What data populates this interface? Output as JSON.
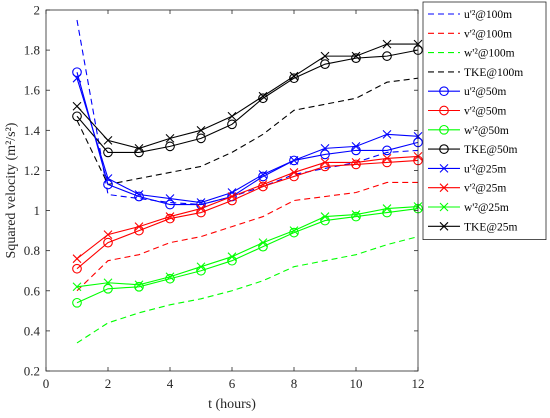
{
  "chart_data": {
    "type": "line",
    "xlabel": "t (hours)",
    "ylabel": "Squared velocity (m²/s²)",
    "xlim": [
      0,
      12
    ],
    "ylim": [
      0.2,
      2
    ],
    "xticks": [
      0,
      2,
      4,
      6,
      8,
      10,
      12
    ],
    "yticks": [
      0.2,
      0.4,
      0.6,
      0.8,
      1,
      1.2,
      1.4,
      1.6,
      1.8,
      2
    ],
    "xtick_labels": [
      "0",
      "2",
      "4",
      "6",
      "8",
      "10",
      "12"
    ],
    "ytick_labels": [
      "0.2",
      "0.4",
      "0.6",
      "0.8",
      "1",
      "1.2",
      "1.4",
      "1.6",
      "1.8",
      "2"
    ],
    "grid": false,
    "legend_position": "outside-right",
    "x": [
      1,
      2,
      3,
      4,
      5,
      6,
      7,
      8,
      9,
      10,
      11,
      12
    ],
    "series": [
      {
        "name": "u'²@100m",
        "color": "#0000ff",
        "style": "dashed",
        "marker": "none",
        "values": [
          1.95,
          1.08,
          1.06,
          1.04,
          1.03,
          1.07,
          1.12,
          1.18,
          1.21,
          1.24,
          1.29,
          1.3
        ]
      },
      {
        "name": "v'²@100m",
        "color": "#ff0000",
        "style": "dashed",
        "marker": "none",
        "values": [
          0.6,
          0.75,
          0.78,
          0.84,
          0.87,
          0.92,
          0.97,
          1.05,
          1.07,
          1.09,
          1.14,
          1.14
        ]
      },
      {
        "name": "w'²@100m",
        "color": "#00ff00",
        "style": "dashed",
        "marker": "none",
        "values": [
          0.34,
          0.44,
          0.49,
          0.53,
          0.56,
          0.6,
          0.65,
          0.72,
          0.75,
          0.78,
          0.83,
          0.87
        ]
      },
      {
        "name": "TKE@100m",
        "color": "#000000",
        "style": "dashed",
        "marker": "none",
        "values": [
          1.45,
          1.13,
          1.16,
          1.19,
          1.22,
          1.29,
          1.38,
          1.5,
          1.53,
          1.56,
          1.64,
          1.66
        ]
      },
      {
        "name": "u'²@50m",
        "color": "#0000ff",
        "style": "solid",
        "marker": "circle",
        "values": [
          1.69,
          1.13,
          1.07,
          1.03,
          1.03,
          1.07,
          1.17,
          1.25,
          1.28,
          1.3,
          1.3,
          1.34
        ]
      },
      {
        "name": "v'²@50m",
        "color": "#ff0000",
        "style": "solid",
        "marker": "circle",
        "values": [
          0.71,
          0.84,
          0.9,
          0.96,
          0.99,
          1.05,
          1.12,
          1.17,
          1.22,
          1.23,
          1.24,
          1.25
        ]
      },
      {
        "name": "w'²@50m",
        "color": "#00ff00",
        "style": "solid",
        "marker": "circle",
        "values": [
          0.54,
          0.61,
          0.62,
          0.66,
          0.7,
          0.75,
          0.82,
          0.89,
          0.95,
          0.97,
          0.99,
          1.01
        ]
      },
      {
        "name": "TKE@50m",
        "color": "#000000",
        "style": "solid",
        "marker": "circle",
        "values": [
          1.47,
          1.29,
          1.29,
          1.32,
          1.36,
          1.43,
          1.56,
          1.66,
          1.73,
          1.76,
          1.77,
          1.8
        ]
      },
      {
        "name": "u'²@25m",
        "color": "#0000ff",
        "style": "solid",
        "marker": "x",
        "values": [
          1.66,
          1.16,
          1.08,
          1.06,
          1.04,
          1.09,
          1.18,
          1.25,
          1.31,
          1.32,
          1.38,
          1.37
        ]
      },
      {
        "name": "v'²@25m",
        "color": "#ff0000",
        "style": "solid",
        "marker": "x",
        "values": [
          0.76,
          0.88,
          0.92,
          0.97,
          1.01,
          1.07,
          1.13,
          1.19,
          1.24,
          1.24,
          1.26,
          1.27
        ]
      },
      {
        "name": "w'²@25m",
        "color": "#00ff00",
        "style": "solid",
        "marker": "x",
        "values": [
          0.62,
          0.64,
          0.63,
          0.67,
          0.72,
          0.77,
          0.84,
          0.9,
          0.97,
          0.98,
          1.01,
          1.02
        ]
      },
      {
        "name": "TKE@25m",
        "color": "#000000",
        "style": "solid",
        "marker": "x",
        "values": [
          1.52,
          1.35,
          1.31,
          1.36,
          1.4,
          1.47,
          1.57,
          1.67,
          1.77,
          1.77,
          1.83,
          1.83
        ]
      }
    ]
  }
}
